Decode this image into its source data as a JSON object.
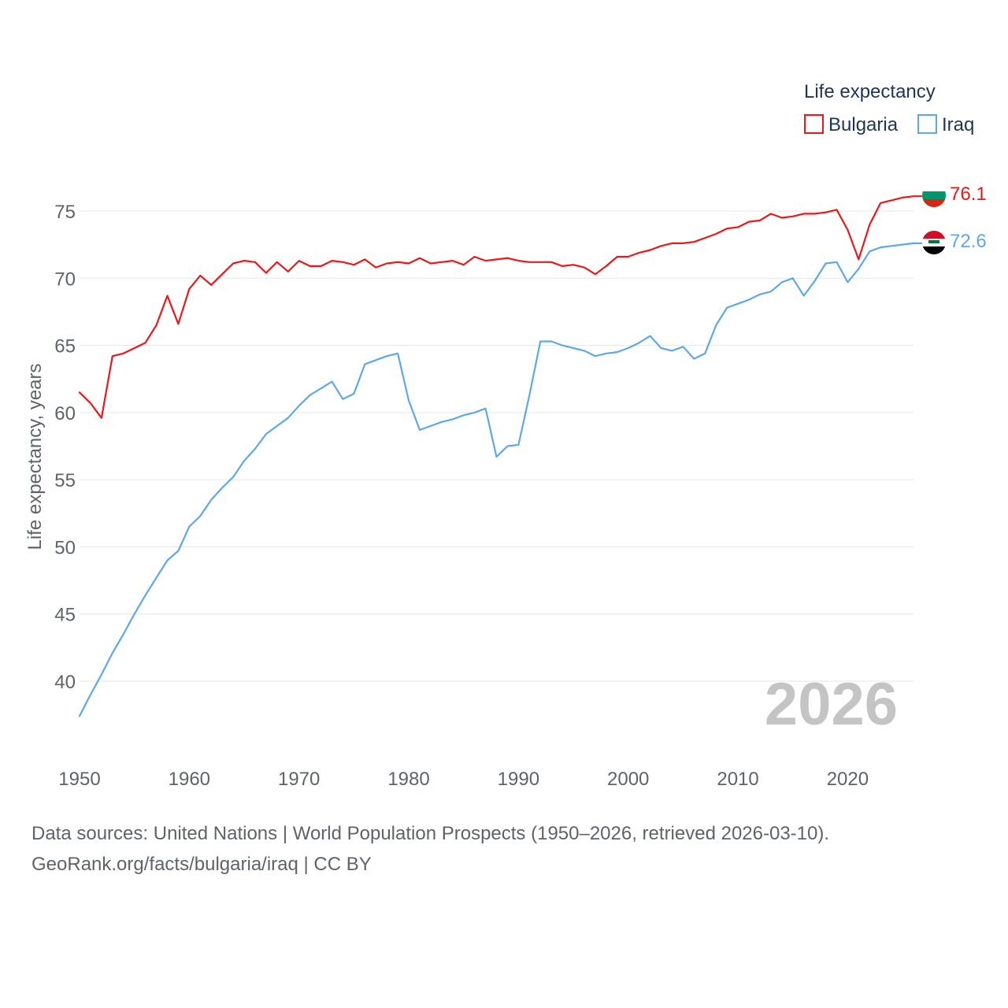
{
  "chart_data": {
    "type": "line",
    "title": "",
    "legend_title": "Life expectancy",
    "legend_position": "top-right",
    "xlabel": "",
    "ylabel": "Life expectancy, years",
    "xlim": [
      1950,
      2026
    ],
    "ylim": [
      36,
      79
    ],
    "x_ticks": [
      1950,
      1960,
      1970,
      1980,
      1990,
      2000,
      2010,
      2020
    ],
    "y_ticks": [
      40,
      45,
      50,
      55,
      60,
      65,
      70,
      75
    ],
    "year_watermark": "2026",
    "x": [
      1950,
      1951,
      1952,
      1953,
      1954,
      1955,
      1956,
      1957,
      1958,
      1959,
      1960,
      1961,
      1962,
      1963,
      1964,
      1965,
      1966,
      1967,
      1968,
      1969,
      1970,
      1971,
      1972,
      1973,
      1974,
      1975,
      1976,
      1977,
      1978,
      1979,
      1980,
      1981,
      1982,
      1983,
      1984,
      1985,
      1986,
      1987,
      1988,
      1989,
      1990,
      1991,
      1992,
      1993,
      1994,
      1995,
      1996,
      1997,
      1998,
      1999,
      2000,
      2001,
      2002,
      2003,
      2004,
      2005,
      2006,
      2007,
      2008,
      2009,
      2010,
      2011,
      2012,
      2013,
      2014,
      2015,
      2016,
      2017,
      2018,
      2019,
      2020,
      2021,
      2022,
      2023,
      2024,
      2025,
      2026
    ],
    "series": [
      {
        "name": "Bulgaria",
        "color": "#e8191b",
        "end_label": "76.1",
        "values": [
          61.5,
          60.7,
          59.6,
          64.2,
          64.4,
          64.8,
          65.2,
          66.5,
          68.7,
          66.6,
          69.2,
          70.2,
          69.5,
          70.3,
          71.1,
          71.3,
          71.2,
          70.4,
          71.2,
          70.5,
          71.3,
          70.9,
          70.9,
          71.3,
          71.2,
          71.0,
          71.4,
          70.8,
          71.1,
          71.2,
          71.1,
          71.5,
          71.1,
          71.2,
          71.3,
          71.0,
          71.6,
          71.3,
          71.4,
          71.5,
          71.3,
          71.2,
          71.2,
          71.2,
          70.9,
          71.0,
          70.8,
          70.3,
          70.9,
          71.6,
          71.6,
          71.9,
          72.1,
          72.4,
          72.6,
          72.6,
          72.7,
          73.0,
          73.3,
          73.7,
          73.8,
          74.2,
          74.3,
          74.8,
          74.5,
          74.6,
          74.8,
          74.8,
          74.9,
          75.1,
          73.6,
          71.4,
          74.0,
          75.6,
          75.8,
          76.0,
          76.1
        ]
      },
      {
        "name": "Iraq",
        "color": "#5ea8e8",
        "end_label": "72.6",
        "values": [
          37.4,
          39.0,
          40.5,
          42.1,
          43.5,
          45.0,
          46.4,
          47.7,
          49.0,
          49.7,
          51.5,
          52.3,
          53.5,
          54.4,
          55.2,
          56.4,
          57.3,
          58.4,
          59.0,
          59.6,
          60.5,
          61.3,
          61.8,
          62.3,
          61.0,
          61.4,
          63.6,
          63.9,
          64.2,
          64.4,
          60.9,
          58.7,
          59.0,
          59.3,
          59.5,
          59.8,
          60.0,
          60.3,
          56.7,
          57.5,
          57.6,
          61.3,
          65.3,
          65.3,
          65.0,
          64.8,
          64.6,
          64.2,
          64.4,
          64.5,
          64.8,
          65.2,
          65.7,
          64.8,
          64.6,
          64.9,
          64.0,
          64.4,
          66.5,
          67.8,
          68.1,
          68.4,
          68.8,
          69.0,
          69.7,
          70.0,
          68.7,
          69.8,
          71.1,
          71.2,
          69.7,
          70.7,
          72.0,
          72.3,
          72.4,
          72.5,
          72.6
        ]
      }
    ]
  },
  "source": {
    "line1": "Data sources: United Nations | World Population Prospects (1950–2026, retrieved 2026-03-10).",
    "line2": "GeoRank.org/facts/bulgaria/iraq | CC BY"
  }
}
